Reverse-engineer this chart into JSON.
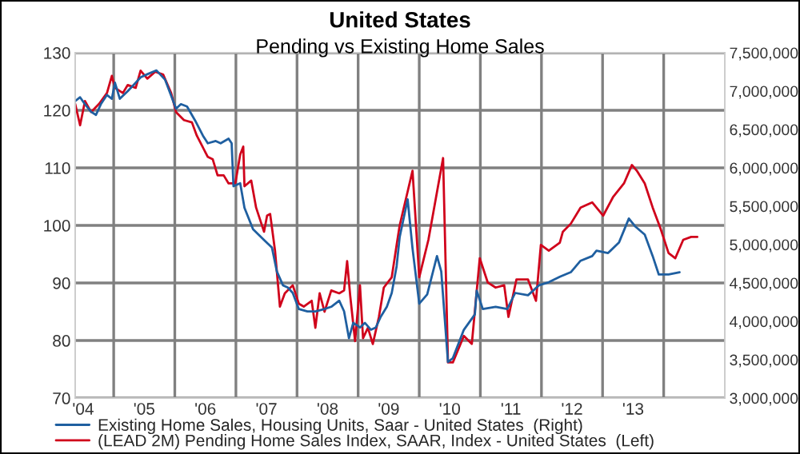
{
  "chart_data": {
    "type": "line",
    "title": "United States",
    "subtitle": "Pending vs Existing Home Sales",
    "legend": "bottom left",
    "grid": true,
    "xlim": [
      2003.87,
      2014.5
    ],
    "xticks": [
      {
        "value": 2004,
        "label": "'04"
      },
      {
        "value": 2005,
        "label": "'05"
      },
      {
        "value": 2006,
        "label": "'06"
      },
      {
        "value": 2007,
        "label": "'07"
      },
      {
        "value": 2008,
        "label": "'08"
      },
      {
        "value": 2009,
        "label": "'09"
      },
      {
        "value": 2010,
        "label": "'10"
      },
      {
        "value": 2011,
        "label": "'11"
      },
      {
        "value": 2012,
        "label": "'12"
      },
      {
        "value": 2013,
        "label": "'13"
      },
      {
        "value": 2004.5,
        "label": null
      },
      {
        "value": 2005.5,
        "label": null
      },
      {
        "value": 2006.5,
        "label": null
      },
      {
        "value": 2007.5,
        "label": null
      },
      {
        "value": 2008.5,
        "label": null
      },
      {
        "value": 2009.5,
        "label": null
      },
      {
        "value": 2010.5,
        "label": null
      },
      {
        "value": 2011.5,
        "label": null
      },
      {
        "value": 2012.5,
        "label": null
      },
      {
        "value": 2013.5,
        "label": null
      }
    ],
    "ylim": [
      70,
      130
    ],
    "yticks": [
      70,
      80,
      90,
      100,
      110,
      120,
      130
    ],
    "y2lim": [
      3000000,
      7500000
    ],
    "y2ticks": [
      {
        "value": 3000000,
        "label": "3,000,000"
      },
      {
        "value": 3500000,
        "label": "3,500,000"
      },
      {
        "value": 4000000,
        "label": "4,000,000"
      },
      {
        "value": 4500000,
        "label": "4,500,000"
      },
      {
        "value": 5000000,
        "label": "5,000,000"
      },
      {
        "value": 5500000,
        "label": "5,500,000"
      },
      {
        "value": 6000000,
        "label": "6,000,000"
      },
      {
        "value": 6500000,
        "label": "6,500,000"
      },
      {
        "value": 7000000,
        "label": "7,000,000"
      },
      {
        "value": 7500000,
        "label": "7,500,000"
      }
    ],
    "series": [
      {
        "name": "Existing Home Sales, Housing Units, Saar - United States  (Right)",
        "color": "#1f5fa0",
        "axis": "y2",
        "x": [
          2003.87,
          2003.95,
          2004.03,
          2004.13,
          2004.21,
          2004.29,
          2004.39,
          2004.47,
          2004.52,
          2004.6,
          2004.73,
          2004.86,
          2004.94,
          2005.05,
          2005.2,
          2005.34,
          2005.44,
          2005.52,
          2005.6,
          2005.7,
          2005.83,
          2005.96,
          2006.04,
          2006.17,
          2006.25,
          2006.38,
          2006.43,
          2006.46,
          2006.57,
          2006.64,
          2006.78,
          2006.96,
          2007.09,
          2007.17,
          2007.27,
          2007.35,
          2007.43,
          2007.53,
          2007.67,
          2007.8,
          2007.95,
          2008.06,
          2008.19,
          2008.27,
          2008.35,
          2008.42,
          2008.53,
          2008.61,
          2008.71,
          2008.79,
          2008.87,
          2008.97,
          2009.05,
          2009.13,
          2009.18,
          2009.31,
          2009.39,
          2009.5,
          2009.63,
          2009.79,
          2009.86,
          2009.97,
          2010.05,
          2010.23,
          2010.41,
          2010.44,
          2010.54,
          2010.75,
          2010.94,
          2011.07,
          2011.28,
          2011.46,
          2011.62,
          2011.8,
          2011.98,
          2012.14,
          2012.33,
          2012.4,
          2012.59,
          2012.77,
          2012.93,
          2013.03,
          2013.19,
          2013.32,
          2013.42,
          2013.58,
          2013.76
        ],
        "values": [
          6870000,
          6920000,
          6830000,
          6730000,
          6690000,
          6830000,
          6950000,
          6900000,
          7110000,
          6900000,
          7000000,
          7110000,
          7180000,
          7220000,
          7270000,
          7150000,
          6940000,
          6770000,
          6830000,
          6800000,
          6620000,
          6420000,
          6320000,
          6350000,
          6320000,
          6380000,
          6320000,
          5760000,
          5800000,
          5480000,
          5200000,
          5060000,
          4960000,
          4650000,
          4470000,
          4440000,
          4370000,
          4160000,
          4130000,
          4130000,
          4160000,
          4190000,
          4270000,
          4130000,
          3780000,
          3980000,
          3920000,
          3980000,
          3890000,
          3920000,
          4060000,
          4190000,
          4370000,
          4720000,
          5100000,
          5590000,
          4950000,
          4230000,
          4350000,
          4850000,
          4650000,
          3470000,
          3520000,
          3890000,
          4090000,
          4400000,
          4160000,
          4190000,
          4160000,
          4370000,
          4340000,
          4470000,
          4510000,
          4580000,
          4640000,
          4790000,
          4850000,
          4920000,
          4890000,
          5030000,
          5340000,
          5240000,
          5130000,
          4850000,
          4610000,
          4610000,
          4640000
        ]
      },
      {
        "name": "(LEAD 2M) Pending Home Sales Index, SAAR, Index - United States  (Left)",
        "color": "#d0021b",
        "x": [
          2003.87,
          2003.95,
          2004.03,
          2004.13,
          2004.26,
          2004.39,
          2004.47,
          2004.52,
          2004.65,
          2004.73,
          2004.86,
          2004.94,
          2005.05,
          2005.18,
          2005.31,
          2005.44,
          2005.52,
          2005.65,
          2005.78,
          2005.86,
          2006.04,
          2006.12,
          2006.2,
          2006.3,
          2006.38,
          2006.49,
          2006.57,
          2006.62,
          2006.64,
          2006.75,
          2006.83,
          2006.96,
          2007.01,
          2007.06,
          2007.14,
          2007.22,
          2007.3,
          2007.43,
          2007.53,
          2007.61,
          2007.74,
          2007.8,
          2007.87,
          2007.95,
          2008.06,
          2008.19,
          2008.27,
          2008.32,
          2008.37,
          2008.45,
          2008.53,
          2008.58,
          2008.66,
          2008.74,
          2008.84,
          2008.92,
          2009.05,
          2009.13,
          2009.18,
          2009.39,
          2009.5,
          2009.65,
          2009.89,
          2009.97,
          2010.05,
          2010.23,
          2010.36,
          2010.49,
          2010.62,
          2010.75,
          2010.89,
          2010.96,
          2011.09,
          2011.28,
          2011.41,
          2011.49,
          2011.62,
          2011.8,
          2011.85,
          2011.98,
          2012.14,
          2012.33,
          2012.51,
          2012.67,
          2012.85,
          2012.98,
          2013.06,
          2013.19,
          2013.32,
          2013.45,
          2013.58,
          2013.69,
          2013.82,
          2013.95,
          2014.05
        ],
        "values": [
          121.1,
          117.4,
          121.6,
          119.7,
          121.1,
          123,
          126,
          123.9,
          123,
          124.4,
          123.9,
          126.9,
          125.5,
          126.7,
          126.2,
          123,
          119.7,
          118.3,
          117.9,
          115.6,
          111.9,
          111.5,
          108.7,
          108.7,
          107.3,
          107.3,
          112.3,
          113.7,
          106.8,
          107.8,
          103.1,
          98.9,
          101.7,
          102,
          95.6,
          85.9,
          88.2,
          89.6,
          86.4,
          85.9,
          86.9,
          82.2,
          88.2,
          85,
          88.7,
          88.2,
          88.7,
          93.8,
          87.8,
          79.9,
          89.6,
          80.4,
          82.2,
          79.4,
          84.1,
          89.2,
          91,
          96.6,
          100,
          109.5,
          91,
          97.5,
          111.7,
          76.2,
          76.2,
          80.8,
          79.4,
          94.3,
          90.1,
          89.2,
          89.6,
          84.1,
          90.6,
          90.6,
          86.9,
          96.6,
          95.6,
          97,
          98.9,
          100.3,
          103.1,
          104,
          101.7,
          104.9,
          107.3,
          110.5,
          109.5,
          107.3,
          103.1,
          99.4,
          95.2,
          94.3,
          97.5,
          98,
          98
        ]
      }
    ]
  }
}
